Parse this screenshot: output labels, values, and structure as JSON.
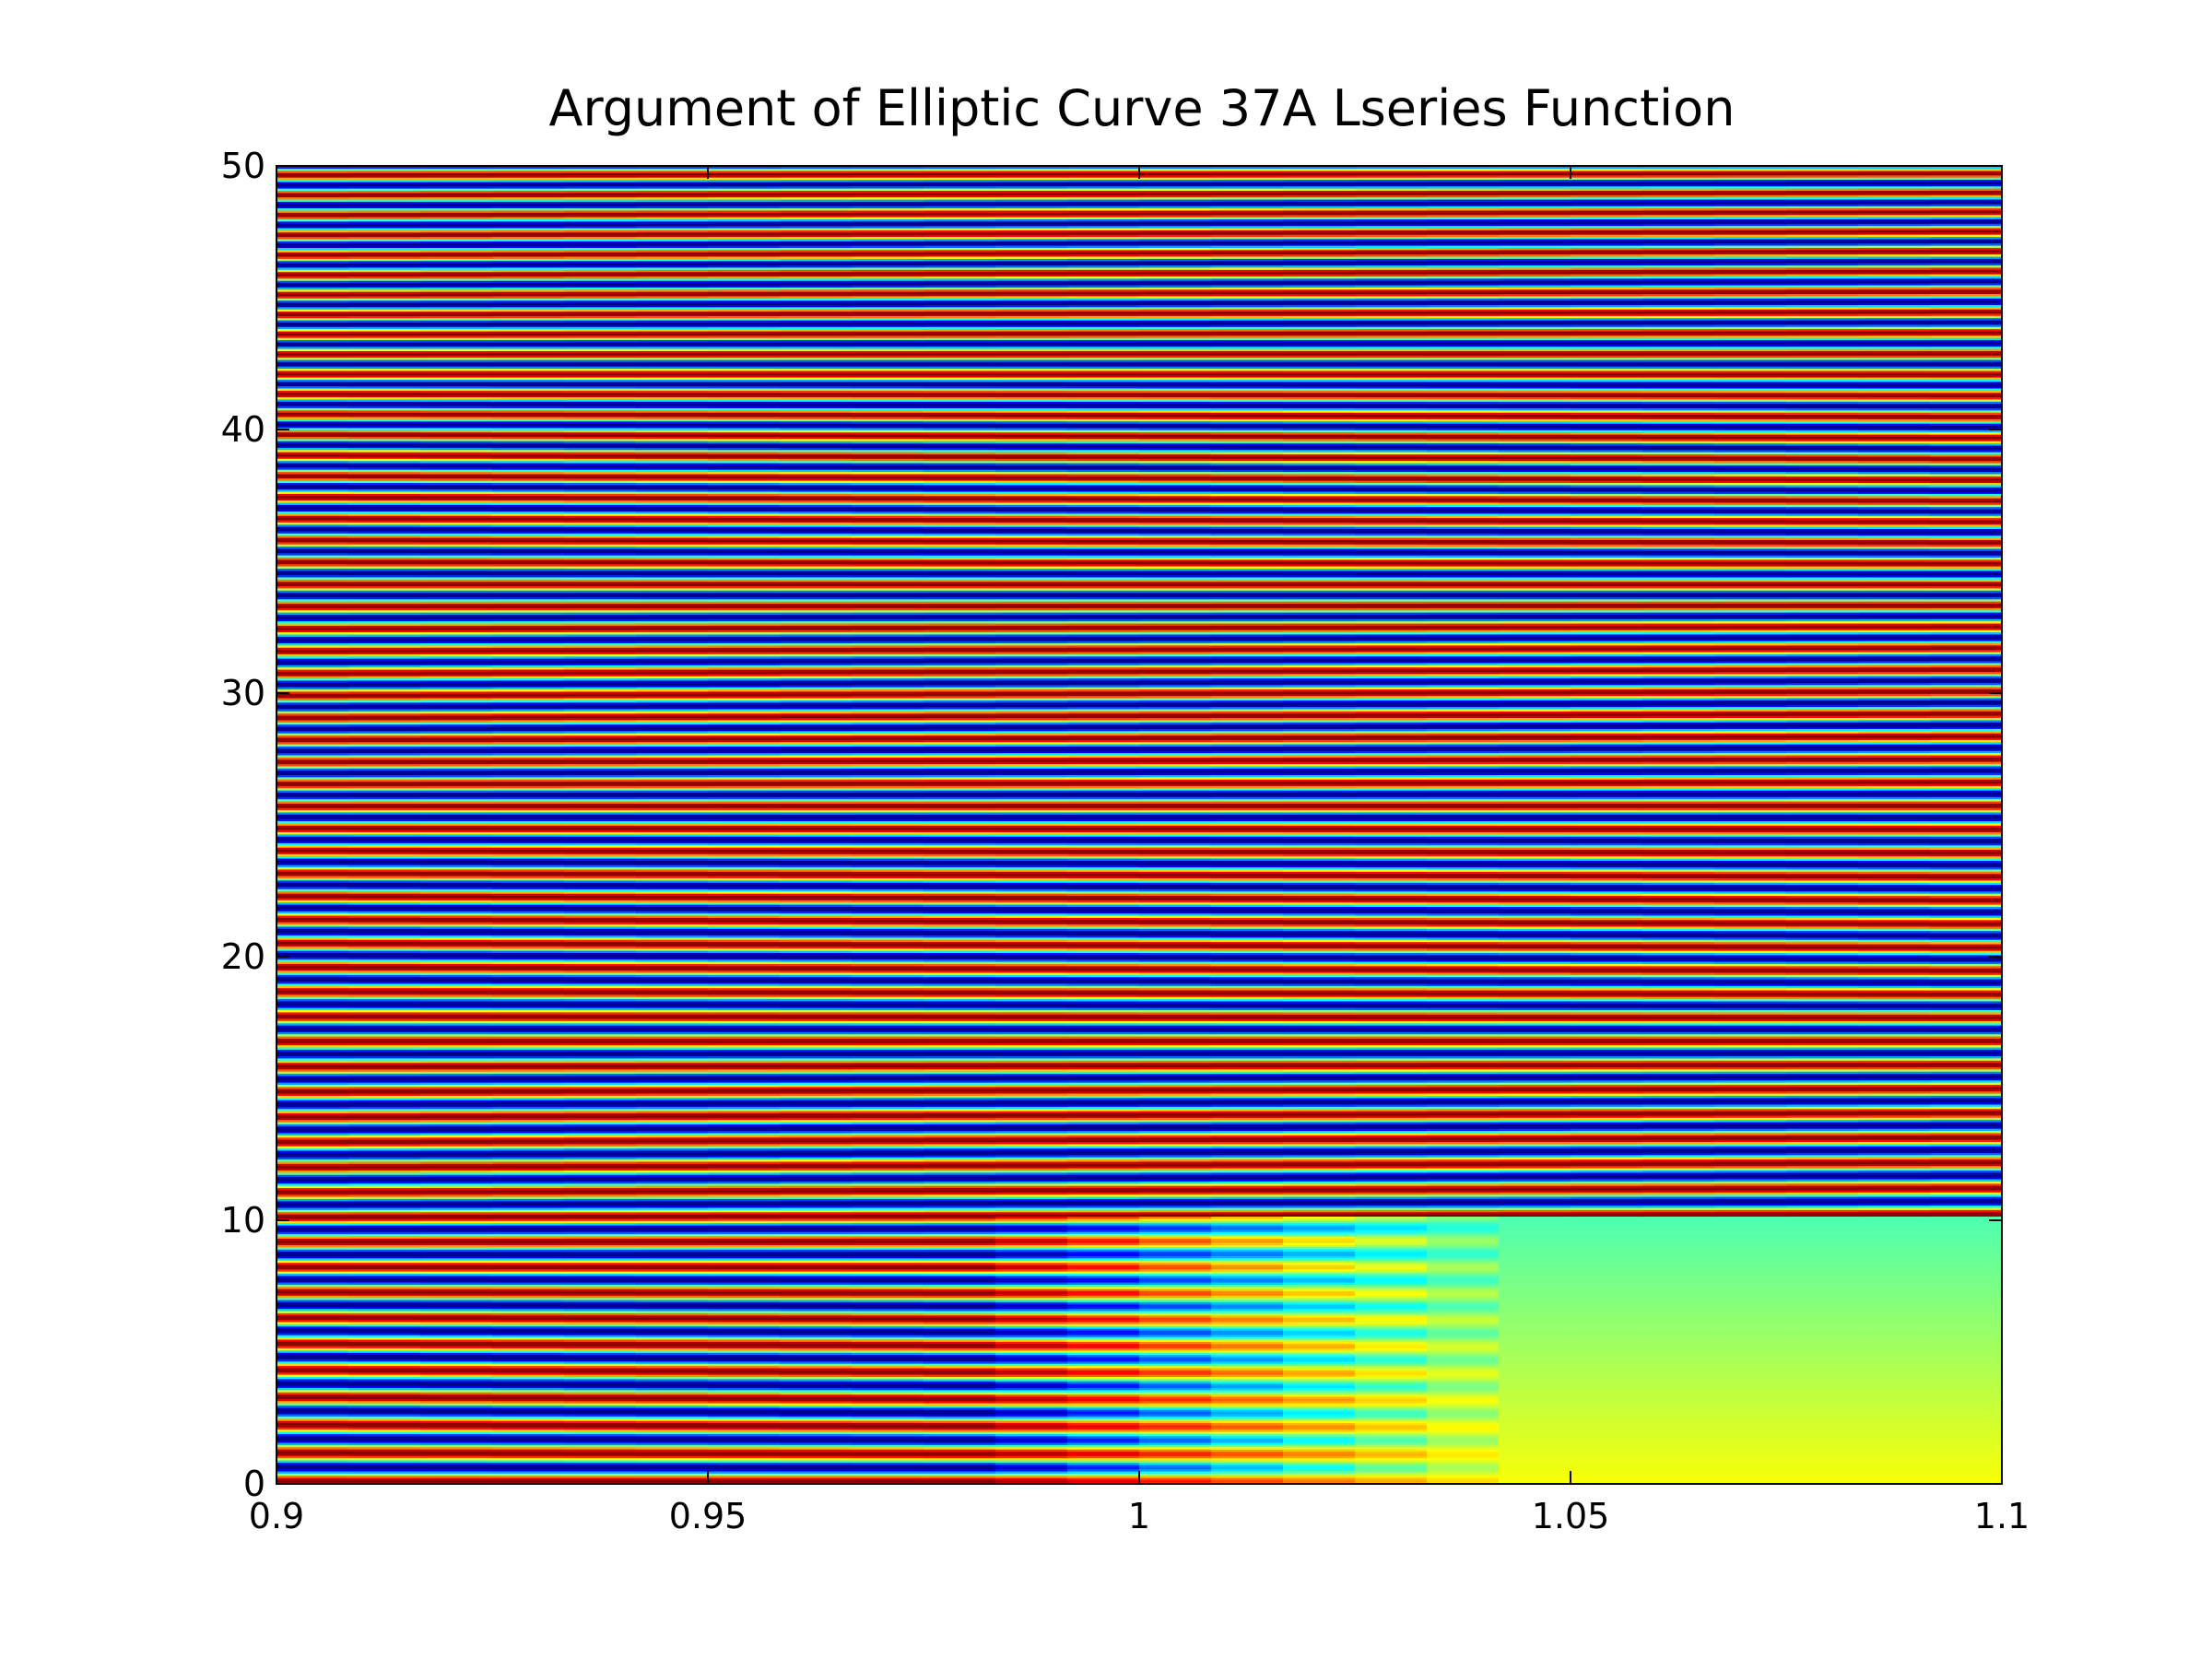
{
  "chart_data": {
    "type": "heatmap",
    "title": "Argument of Elliptic Curve 37A Lseries Function",
    "xlabel": "",
    "ylabel": "",
    "xlim": [
      0.9,
      1.1
    ],
    "ylim": [
      0,
      50
    ],
    "x_ticks": [
      0.9,
      0.95,
      1,
      1.05,
      1.1
    ],
    "x_tick_labels": [
      "0.9",
      "0.95",
      "1",
      "1.05",
      "1.1"
    ],
    "y_ticks": [
      0,
      10,
      20,
      30,
      40,
      50
    ],
    "y_tick_labels": [
      "0",
      "10",
      "20",
      "30",
      "40",
      "50"
    ],
    "colormap": "jet",
    "grid": false,
    "legend": "none",
    "description_of_field": "arg(L(s)) for s = x + i*y, banded horizontally; value range approx [-pi, pi]",
    "smooth_region": {
      "x_from": 1.045,
      "y_to": 10.2,
      "color_value_low": 0.62,
      "color_value_high": 0.45
    }
  }
}
